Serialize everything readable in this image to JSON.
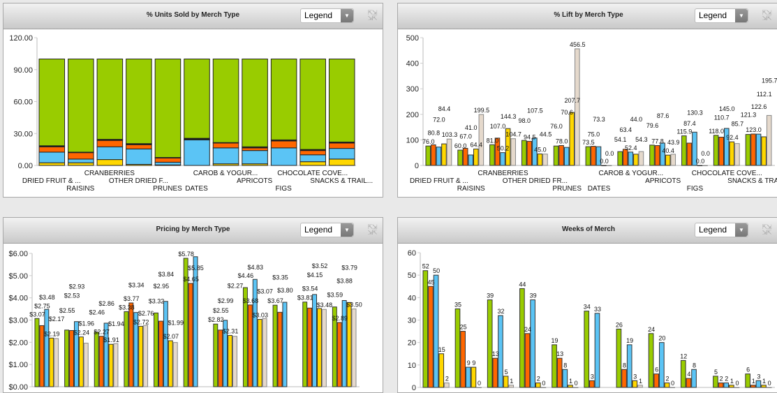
{
  "legend_label": "Legend",
  "colors": {
    "green": "#99cc00",
    "orange": "#ff6600",
    "blue": "#5bc4f5",
    "yellow": "#ffd700",
    "beige": "#e5d9cc",
    "dark": "#111111"
  },
  "chart_data": [
    {
      "type": "bar",
      "stacked": true,
      "title": "% Units Sold by Merch Type",
      "ylim": [
        0,
        120
      ],
      "yticks": [
        "0.00",
        "30.00",
        "60.00",
        "90.00",
        "120.00"
      ],
      "categories": [
        "DRIED FRUIT & ...",
        "RAISINS",
        "CRANBERRIES",
        "OTHER DRIED F...",
        "PRUNES",
        "DATES",
        "CAROB & YOGUR...",
        "APRICOTS",
        "FIGS",
        "CHOCOLATE COVE...",
        "SNACKS & TRAIL..."
      ],
      "series": [
        {
          "color": "#ffd700",
          "values": [
            2.5,
            2.5,
            5.5,
            1,
            0.5,
            0,
            1.5,
            1.5,
            0,
            3.5,
            6
          ]
        },
        {
          "color": "#5bc4f5",
          "values": [
            10,
            3.5,
            12,
            14.5,
            2.5,
            24,
            15,
            12.5,
            16.5,
            6.5,
            10
          ]
        },
        {
          "color": "#ff6600",
          "values": [
            5,
            6,
            6,
            4,
            4,
            0.5,
            4.5,
            2.5,
            6.5,
            4,
            5
          ]
        },
        {
          "color": "#111111",
          "values": [
            1,
            0.5,
            1,
            1,
            0.5,
            1,
            0.5,
            1,
            1,
            1,
            1
          ]
        },
        {
          "color": "#99cc00",
          "values": [
            81.5,
            87.5,
            75.5,
            79.5,
            92.5,
            74.5,
            78.5,
            82.5,
            76,
            85,
            78
          ]
        }
      ]
    },
    {
      "type": "bar",
      "title": "% Lift by Merch Type",
      "ylim": [
        0,
        500
      ],
      "yticks": [
        "0",
        "100",
        "200",
        "300",
        "400",
        "500"
      ],
      "categories": [
        "DRIED FRUIT & ...",
        "RAISINS",
        "CRANBERRIES",
        "OTHER DRIED FR...",
        "PRUNES",
        "DATES",
        "CAROB & YOGUR...",
        "APRICOTS",
        "FIGS",
        "CHOCOLATE COVE...",
        "SNACKS & TRAIL..."
      ],
      "series": [
        {
          "color": "#99cc00",
          "values": [
            76.0,
            60.0,
            81.0,
            98.0,
            76.0,
            73.5,
            54.1,
            79.6,
            115.9,
            118.0,
            121.3
          ]
        },
        {
          "color": "#ff6600",
          "values": [
            80.8,
            67.0,
            107.0,
            94.5,
            78.0,
            75.0,
            63.4,
            77.8,
            87.4,
            110.7,
            123.0
          ]
        },
        {
          "color": "#5bc4f5",
          "values": [
            72.0,
            41.0,
            50.2,
            107.5,
            70.6,
            73.3,
            52.4,
            87.6,
            130.3,
            145.0,
            122.6
          ]
        },
        {
          "color": "#ffd700",
          "values": [
            84.4,
            64.4,
            144.3,
            45.0,
            207.7,
            0.0,
            44.0,
            40.4,
            0.0,
            92.4,
            112.1
          ]
        },
        {
          "color": "#e5d9cc",
          "values": [
            103.3,
            199.5,
            104.7,
            44.5,
            456.5,
            0.0,
            54.3,
            43.9,
            0.0,
            85.7,
            195.7
          ]
        }
      ]
    },
    {
      "type": "bar",
      "title": "Pricing by Merch Type",
      "ylim": [
        0,
        6
      ],
      "yticks": [
        "$0.00",
        "$1.00",
        "$2.00",
        "$3.00",
        "$4.00",
        "$5.00",
        "$6.00"
      ],
      "prefix": "$",
      "decimals": 2,
      "series": [
        {
          "color": "#99cc00",
          "values": [
            3.07,
            2.55,
            2.46,
            3.38,
            3.32,
            5.78,
            2.82,
            4.46,
            3.67,
            3.81,
            3.59
          ]
        },
        {
          "color": "#ff6600",
          "values": [
            2.75,
            2.53,
            2.27,
            3.77,
            2.95,
            4.65,
            2.55,
            3.68,
            3.35,
            3.54,
            2.89
          ]
        },
        {
          "color": "#5bc4f5",
          "values": [
            3.48,
            2.93,
            2.86,
            3.34,
            3.84,
            5.85,
            2.99,
            4.83,
            3.8,
            4.15,
            3.88
          ]
        },
        {
          "color": "#ffd700",
          "values": [
            2.19,
            2.24,
            1.91,
            2.72,
            2.07,
            null,
            2.31,
            3.03,
            null,
            3.52,
            3.79
          ]
        },
        {
          "color": "#e5d9cc",
          "values": [
            2.17,
            1.96,
            1.94,
            2.76,
            1.99,
            null,
            2.27,
            3.07,
            null,
            3.48,
            3.5
          ]
        }
      ]
    },
    {
      "type": "bar",
      "title": "Weeks of Merch",
      "ylim": [
        0,
        60
      ],
      "yticks": [
        "0",
        "10",
        "20",
        "30",
        "40",
        "50",
        "60"
      ],
      "decimals": 0,
      "series": [
        {
          "color": "#99cc00",
          "values": [
            52,
            35,
            39,
            44,
            19,
            34,
            26,
            24,
            12,
            5,
            6
          ]
        },
        {
          "color": "#ff6600",
          "values": [
            45,
            25,
            13,
            24,
            13,
            3,
            8,
            6,
            4,
            2,
            1
          ]
        },
        {
          "color": "#5bc4f5",
          "values": [
            50,
            9,
            32,
            39,
            8,
            33,
            19,
            20,
            8,
            2,
            3
          ]
        },
        {
          "color": "#ffd700",
          "values": [
            15,
            9,
            5,
            2,
            1,
            null,
            3,
            2,
            null,
            1,
            1
          ]
        },
        {
          "color": "#e5d9cc",
          "values": [
            2,
            0,
            1,
            0,
            0,
            null,
            1,
            0,
            null,
            0,
            0
          ]
        }
      ]
    }
  ]
}
